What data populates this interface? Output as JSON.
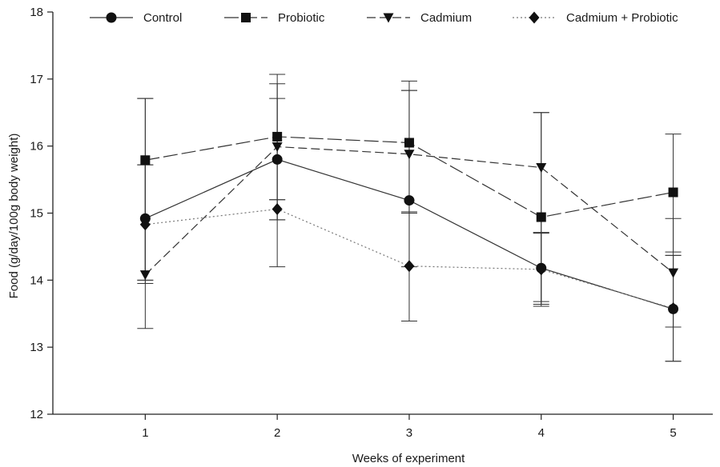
{
  "chart_data": {
    "type": "line",
    "xlabel": "Weeks of experiment",
    "ylabel": "Food (g/day/100g body weight)",
    "x": [
      1,
      2,
      3,
      4,
      5
    ],
    "xlim": [
      0.3,
      5.3
    ],
    "ylim": [
      12,
      18
    ],
    "xticks": [
      "1",
      "2",
      "3",
      "4",
      "5"
    ],
    "yticks": [
      "12",
      "13",
      "14",
      "15",
      "16",
      "17",
      "18"
    ],
    "grid": false,
    "legend_position": "top",
    "series": [
      {
        "name": "Control",
        "marker": "circle",
        "line_style": "solid",
        "values": [
          14.92,
          15.8,
          15.19,
          14.18,
          13.57
        ],
        "error": [
          [
            13.28,
            16.71
          ],
          [
            14.2,
            16.71
          ],
          [
            13.39,
            16.83
          ],
          [
            13.61,
            14.71
          ],
          [
            12.79,
            14.37
          ]
        ]
      },
      {
        "name": "Probiotic",
        "marker": "square",
        "line_style": "long-dash",
        "values": [
          15.79,
          16.14,
          16.05,
          14.94,
          15.31
        ],
        "error": [
          [
            14.0,
            16.71
          ],
          [
            15.2,
            17.07
          ],
          [
            15.0,
            16.97
          ],
          [
            13.68,
            16.5
          ],
          [
            14.42,
            16.18
          ]
        ]
      },
      {
        "name": "Cadmium",
        "marker": "triangle-down",
        "line_style": "dash",
        "values": [
          14.08,
          15.99,
          15.88,
          15.68,
          14.11
        ],
        "error": [
          [
            13.95,
            15.72
          ],
          [
            14.9,
            16.93
          ],
          [
            15.02,
            16.83
          ],
          [
            14.71,
            16.5
          ],
          [
            13.3,
            14.92
          ]
        ]
      },
      {
        "name": "Cadmium + Probiotic",
        "marker": "diamond",
        "line_style": "dotted",
        "values": [
          14.83,
          15.06,
          14.21,
          14.16,
          13.58
        ],
        "error": [
          [
            14.0,
            15.72
          ],
          [
            14.9,
            15.2
          ],
          [
            14.2,
            15.0
          ],
          [
            13.64,
            14.7
          ],
          [
            12.79,
            14.37
          ]
        ]
      }
    ]
  }
}
